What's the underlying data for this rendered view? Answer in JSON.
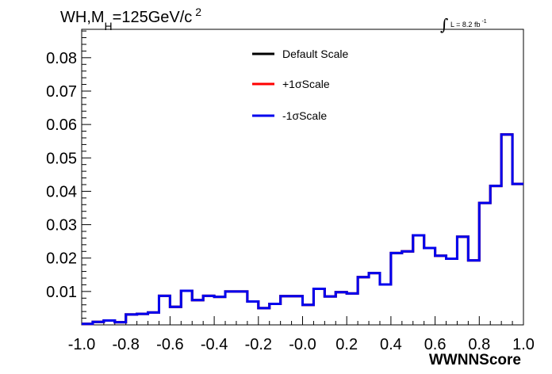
{
  "title": {
    "main": "WH,M",
    "sub": "H",
    "rest": "=125GeV/c",
    "sup": "2"
  },
  "luminosity": {
    "symbol": "∫",
    "text": "L = 8.2 fb",
    "sup": "-1"
  },
  "chart_data": {
    "type": "line",
    "xlabel": "WWNNScore",
    "ylabel": "",
    "xlim": [
      -1.0,
      1.0
    ],
    "ylim": [
      0.0,
      0.0885
    ],
    "x_ticks": [
      "-1.0",
      "-0.8",
      "-0.6",
      "-0.4",
      "-0.2",
      "-0.0",
      "0.2",
      "0.4",
      "0.6",
      "0.8",
      "1.0"
    ],
    "y_ticks": [
      "0.01",
      "0.02",
      "0.03",
      "0.04",
      "0.05",
      "0.06",
      "0.07",
      "0.08"
    ],
    "legend_position": "top-center",
    "grid": false,
    "bin_edges": [
      -1.0,
      0.05
    ],
    "series": [
      {
        "name": "Default Scale",
        "color": "#000000",
        "values": [
          0.0003,
          0.0009,
          0.0013,
          0.0008,
          0.0031,
          0.0033,
          0.0037,
          0.0087,
          0.0054,
          0.0102,
          0.0074,
          0.0087,
          0.0084,
          0.01,
          0.01,
          0.007,
          0.005,
          0.0063,
          0.0086,
          0.0086,
          0.006,
          0.0108,
          0.0085,
          0.0098,
          0.0094,
          0.0143,
          0.0155,
          0.0121,
          0.0215,
          0.022,
          0.0268,
          0.023,
          0.0207,
          0.0198,
          0.0264,
          0.0193,
          0.0365,
          0.0416,
          0.057,
          0.0422
        ]
      },
      {
        "name": "+1σScale",
        "color": "#ff0000",
        "values": [
          0.0003,
          0.0009,
          0.0013,
          0.0008,
          0.0031,
          0.0033,
          0.0037,
          0.0087,
          0.0054,
          0.0102,
          0.0074,
          0.0087,
          0.0084,
          0.01,
          0.01,
          0.007,
          0.005,
          0.0063,
          0.0086,
          0.0086,
          0.006,
          0.0108,
          0.0085,
          0.0098,
          0.0094,
          0.0143,
          0.0155,
          0.0121,
          0.0215,
          0.022,
          0.0268,
          0.023,
          0.0207,
          0.0198,
          0.0264,
          0.0193,
          0.0365,
          0.0416,
          0.057,
          0.0422
        ]
      },
      {
        "name": "-1σScale",
        "color": "#0000ee",
        "values": [
          0.0003,
          0.0009,
          0.0013,
          0.0008,
          0.0031,
          0.0033,
          0.0037,
          0.0087,
          0.0054,
          0.0102,
          0.0074,
          0.0087,
          0.0084,
          0.01,
          0.01,
          0.007,
          0.005,
          0.0063,
          0.0086,
          0.0086,
          0.006,
          0.0108,
          0.0085,
          0.0098,
          0.0094,
          0.0143,
          0.0155,
          0.0121,
          0.0215,
          0.022,
          0.0268,
          0.023,
          0.0207,
          0.0198,
          0.0264,
          0.0193,
          0.0365,
          0.0416,
          0.057,
          0.0422
        ]
      }
    ]
  }
}
